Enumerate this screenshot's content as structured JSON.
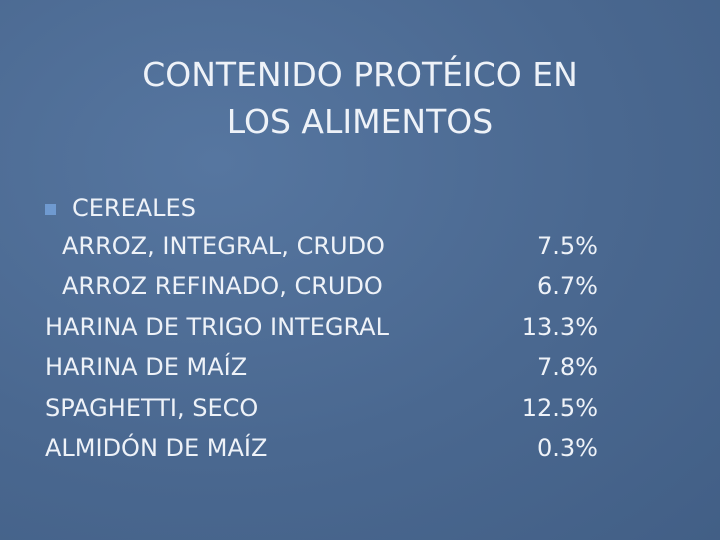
{
  "title": {
    "lines": [
      "CONTENIDO PROTÉICO EN",
      "LOS ALIMENTOS"
    ]
  },
  "list": {
    "heading": "CEREALES",
    "rows": [
      {
        "label": "ARROZ, INTEGRAL, CRUDO",
        "value": "7.5%"
      },
      {
        "label": "ARROZ REFINADO, CRUDO",
        "value": "6.7%"
      },
      {
        "label": "HARINA DE TRIGO INTEGRAL",
        "value": "13.3%"
      },
      {
        "label": "HARINA DE MAÍZ",
        "value": "7.8%"
      },
      {
        "label": "SPAGHETTI, SECO",
        "value": "12.5%"
      },
      {
        "label": "ALMIDÓN DE MAÍZ",
        "value": "0.3%"
      }
    ]
  }
}
